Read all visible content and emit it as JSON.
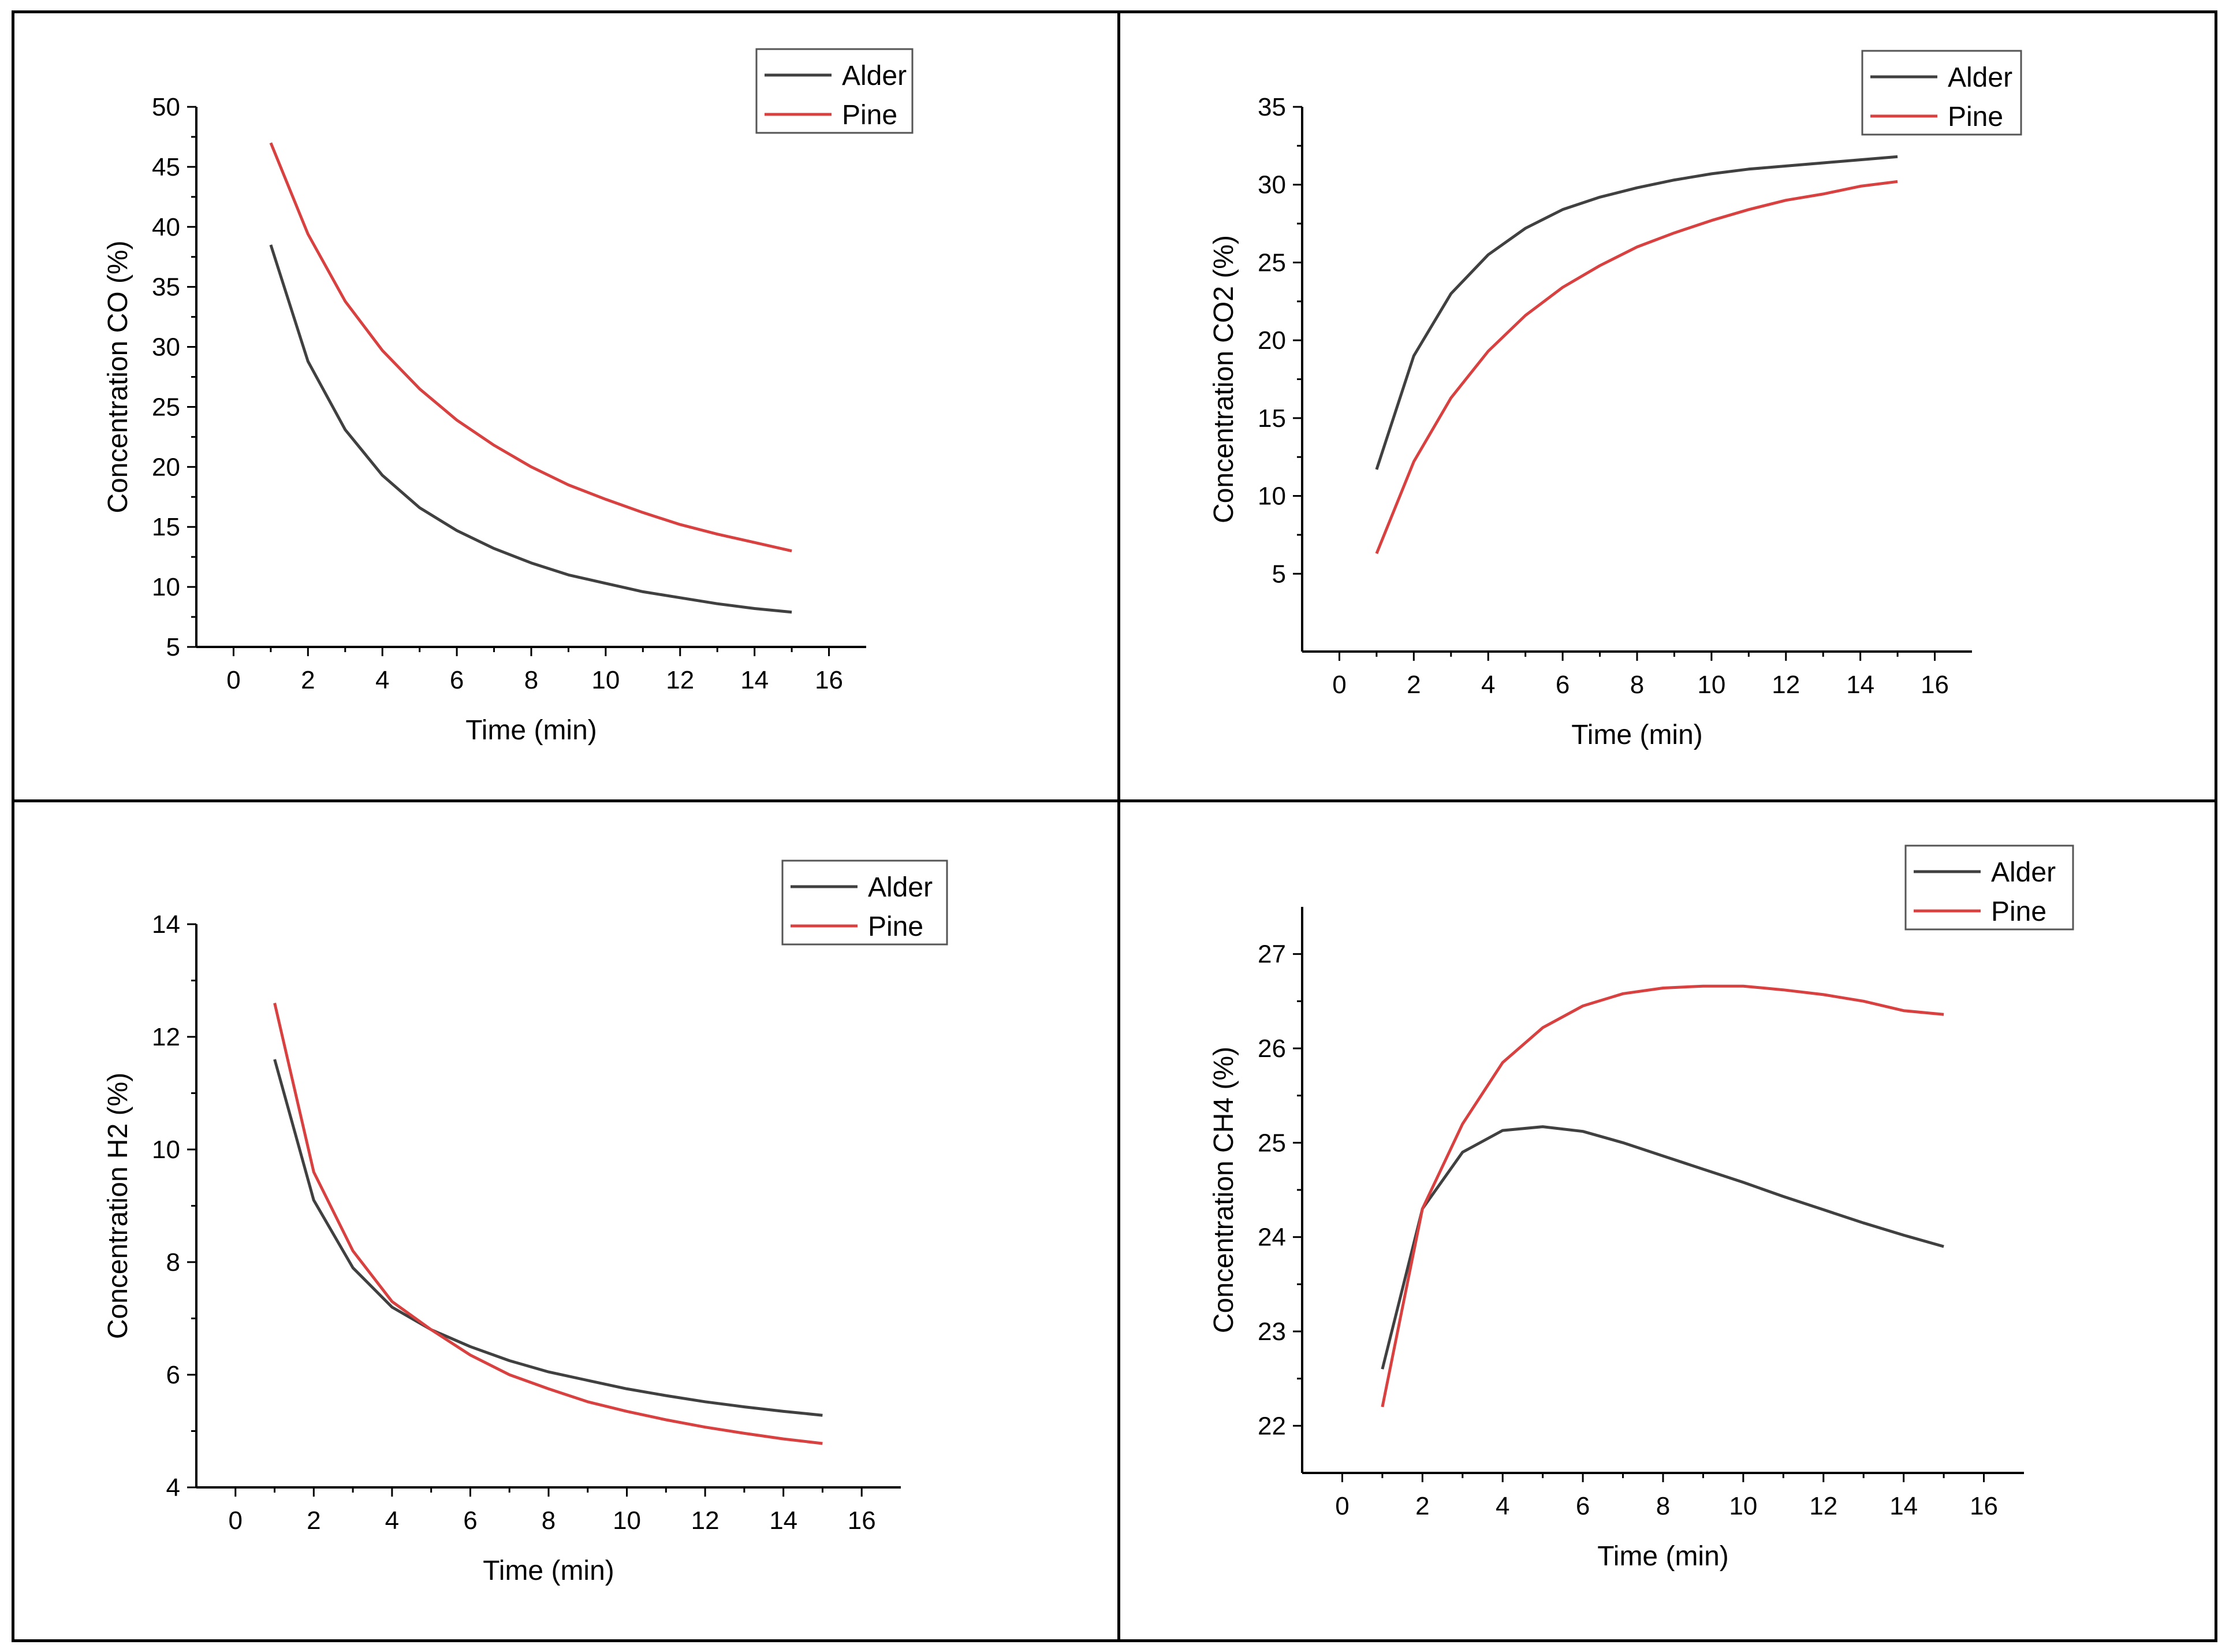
{
  "colors": {
    "alder": "#404040",
    "pine": "#d94040",
    "axis": "#000000"
  },
  "chart_data": [
    {
      "type": "line",
      "id": "co",
      "xlabel": "Time (min)",
      "ylabel": "Concentration CO (%)",
      "xlim": [
        -1,
        17
      ],
      "ylim": [
        5,
        50
      ],
      "xticks": [
        0,
        2,
        4,
        6,
        8,
        10,
        12,
        14,
        16
      ],
      "yticks": [
        5,
        10,
        15,
        20,
        25,
        30,
        35,
        40,
        45,
        50
      ],
      "legend": {
        "position": "top-right"
      },
      "series": [
        {
          "name": "Alder",
          "color": "#404040",
          "x": [
            1,
            2,
            3,
            4,
            5,
            6,
            7,
            8,
            9,
            10,
            11,
            12,
            13,
            14,
            15
          ],
          "y": [
            38.5,
            28.8,
            23.1,
            19.3,
            16.6,
            14.7,
            13.2,
            12.0,
            11.0,
            10.3,
            9.6,
            9.1,
            8.6,
            8.2,
            7.9
          ]
        },
        {
          "name": "Pine",
          "color": "#d94040",
          "x": [
            1,
            2,
            3,
            4,
            5,
            6,
            7,
            8,
            9,
            10,
            11,
            12,
            13,
            14,
            15
          ],
          "y": [
            47.0,
            39.4,
            33.8,
            29.7,
            26.5,
            23.9,
            21.8,
            20.0,
            18.5,
            17.3,
            16.2,
            15.2,
            14.4,
            13.7,
            13.0
          ]
        }
      ]
    },
    {
      "type": "line",
      "id": "co2",
      "xlabel": "Time (min)",
      "ylabel": "Concentration CO2 (%)",
      "xlim": [
        -1,
        17
      ],
      "ylim": [
        0,
        35
      ],
      "xticks": [
        0,
        2,
        4,
        6,
        8,
        10,
        12,
        14,
        16
      ],
      "yticks": [
        5,
        10,
        15,
        20,
        25,
        30,
        35
      ],
      "legend": {
        "position": "top-right"
      },
      "series": [
        {
          "name": "Alder",
          "color": "#404040",
          "x": [
            1,
            2,
            3,
            4,
            5,
            6,
            7,
            8,
            9,
            10,
            11,
            12,
            13,
            14,
            15
          ],
          "y": [
            11.7,
            19.0,
            23.0,
            25.5,
            27.2,
            28.4,
            29.2,
            29.8,
            30.3,
            30.7,
            31.0,
            31.2,
            31.4,
            31.6,
            31.8
          ]
        },
        {
          "name": "Pine",
          "color": "#d94040",
          "x": [
            1,
            2,
            3,
            4,
            5,
            6,
            7,
            8,
            9,
            10,
            11,
            12,
            13,
            14,
            15
          ],
          "y": [
            6.3,
            12.2,
            16.3,
            19.3,
            21.6,
            23.4,
            24.8,
            26.0,
            26.9,
            27.7,
            28.4,
            29.0,
            29.4,
            29.9,
            30.2
          ]
        }
      ]
    },
    {
      "type": "line",
      "id": "h2",
      "xlabel": "Time (min)",
      "ylabel": "Concentration H2 (%)",
      "xlim": [
        -1,
        17
      ],
      "ylim": [
        4,
        14
      ],
      "xticks": [
        0,
        2,
        4,
        6,
        8,
        10,
        12,
        14,
        16
      ],
      "yticks": [
        4,
        6,
        8,
        10,
        12,
        14
      ],
      "legend": {
        "position": "top-right"
      },
      "series": [
        {
          "name": "Alder",
          "color": "#404040",
          "x": [
            1,
            2,
            3,
            4,
            5,
            6,
            7,
            8,
            9,
            10,
            11,
            12,
            13,
            14,
            15
          ],
          "y": [
            11.6,
            9.1,
            7.9,
            7.2,
            6.8,
            6.5,
            6.25,
            6.05,
            5.9,
            5.75,
            5.63,
            5.52,
            5.43,
            5.35,
            5.28
          ]
        },
        {
          "name": "Pine",
          "color": "#d94040",
          "x": [
            1,
            2,
            3,
            4,
            5,
            6,
            7,
            8,
            9,
            10,
            11,
            12,
            13,
            14,
            15
          ],
          "y": [
            12.6,
            9.6,
            8.2,
            7.3,
            6.8,
            6.35,
            6.0,
            5.75,
            5.52,
            5.35,
            5.2,
            5.07,
            4.96,
            4.86,
            4.78
          ]
        }
      ]
    },
    {
      "type": "line",
      "id": "ch4",
      "xlabel": "Time (min)",
      "ylabel": "Concentration  CH4 (%)",
      "xlim": [
        -1,
        17
      ],
      "ylim": [
        21.5,
        27.5
      ],
      "xticks": [
        0,
        2,
        4,
        6,
        8,
        10,
        12,
        14,
        16
      ],
      "yticks": [
        22,
        23,
        24,
        25,
        26,
        27
      ],
      "legend": {
        "position": "top-right"
      },
      "series": [
        {
          "name": "Alder",
          "color": "#404040",
          "x": [
            1,
            2,
            3,
            4,
            5,
            6,
            7,
            8,
            9,
            10,
            11,
            12,
            13,
            14,
            15
          ],
          "y": [
            22.6,
            24.3,
            24.9,
            25.13,
            25.17,
            25.12,
            25.0,
            24.86,
            24.72,
            24.58,
            24.43,
            24.29,
            24.15,
            24.02,
            23.9
          ]
        },
        {
          "name": "Pine",
          "color": "#d94040",
          "x": [
            1,
            2,
            3,
            4,
            5,
            6,
            7,
            8,
            9,
            10,
            11,
            12,
            13,
            14,
            15
          ],
          "y": [
            22.2,
            24.3,
            25.2,
            25.85,
            26.22,
            26.45,
            26.58,
            26.64,
            26.66,
            26.66,
            26.62,
            26.57,
            26.5,
            26.4,
            26.36
          ]
        }
      ]
    }
  ]
}
